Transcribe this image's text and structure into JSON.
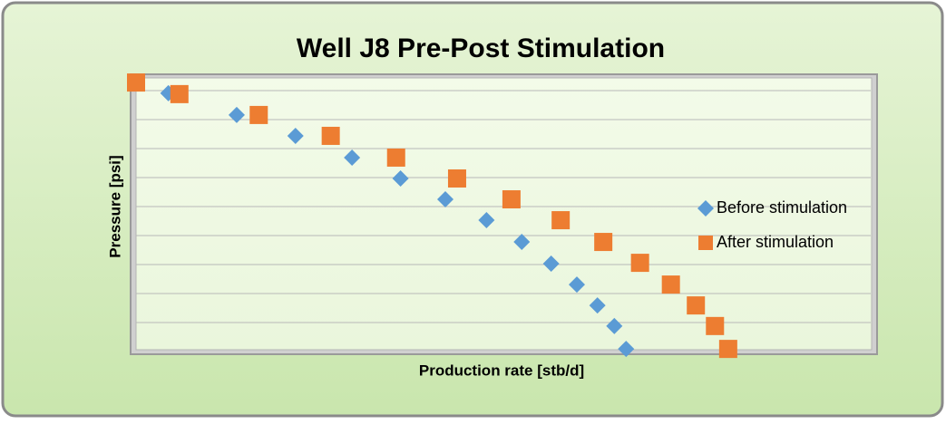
{
  "chart_data": {
    "type": "scatter",
    "title": "Well J8 Pre-Post Stimulation",
    "x_label": "Production rate [stb/d]",
    "y_label": "Pressure [psi]",
    "xlim": [
      0,
      1000
    ],
    "ylim": [
      0,
      9.47
    ],
    "yticks": [
      1,
      2,
      3,
      4,
      5,
      6,
      7,
      8,
      9
    ],
    "grid": true,
    "tick_labels": false,
    "legend": "right",
    "series": [
      {
        "name": "Before stimulation",
        "color": "#5b9bd5",
        "marker": "diamond",
        "x": [
          44,
          137,
          217,
          294,
          360,
          421,
          477,
          525,
          565,
          600,
          628,
          651,
          667
        ],
        "values": [
          8.91,
          8.16,
          7.44,
          6.69,
          5.97,
          5.25,
          4.53,
          3.78,
          3.03,
          2.31,
          1.59,
          0.88,
          0.09
        ]
      },
      {
        "name": "After stimulation",
        "color": "#ed7d31",
        "marker": "square",
        "x": [
          0,
          59,
          167,
          265,
          354,
          437,
          511,
          578,
          636,
          686,
          728,
          762,
          788,
          806
        ],
        "values": [
          9.28,
          8.88,
          8.16,
          7.44,
          6.69,
          5.97,
          5.25,
          4.53,
          3.78,
          3.06,
          2.31,
          1.59,
          0.88,
          0.09
        ]
      }
    ]
  }
}
